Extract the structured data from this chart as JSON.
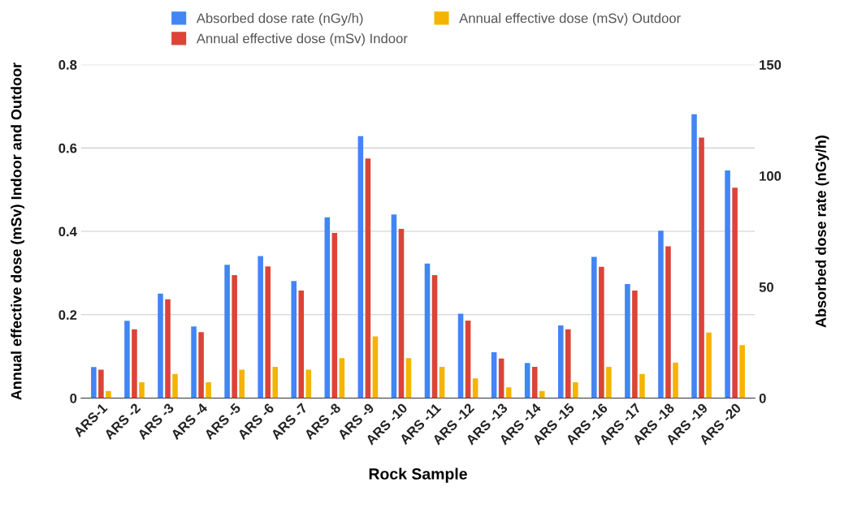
{
  "chart_data": {
    "type": "bar",
    "xlabel": "Rock Sample",
    "ylabel": "Annual effective dose (mSv) Indoor and Outdoor",
    "y2label": "Absorbed dose rate (nGy/h)",
    "categories": [
      "ARS-1",
      "ARS -2",
      "ARS -3",
      "ARS -4",
      "ARS -5",
      "ARS -6",
      "ARS -7",
      "ARS -8",
      "ARS -9",
      "ARS -10",
      "ARS -11",
      "ARS -12",
      "ARS -13",
      "ARS -14",
      "ARS -15",
      "ARS -16",
      "ARS -17",
      "ARS -18",
      "ARS -19",
      "ARS -20"
    ],
    "series": [
      {
        "name": "Absorbed dose rate (nGy/h)",
        "color": "#4285f4",
        "axis": "y2",
        "values": [
          14.0,
          34.8,
          47.0,
          32.2,
          60.0,
          63.9,
          52.7,
          81.3,
          117.8,
          82.6,
          60.5,
          38.0,
          20.6,
          15.8,
          32.7,
          63.5,
          51.3,
          75.3,
          127.7,
          102.4
        ]
      },
      {
        "name": "Annual effective dose (mSv) Indoor",
        "color": "#db4437",
        "values": [
          0.068,
          0.165,
          0.237,
          0.158,
          0.295,
          0.316,
          0.258,
          0.396,
          0.575,
          0.406,
          0.295,
          0.186,
          0.095,
          0.075,
          0.165,
          0.315,
          0.258,
          0.364,
          0.625,
          0.505
        ]
      },
      {
        "name": "Annual effective dose (mSv) Outdoor",
        "color": "#f4b400",
        "values": [
          0.017,
          0.038,
          0.058,
          0.038,
          0.068,
          0.075,
          0.068,
          0.096,
          0.148,
          0.096,
          0.075,
          0.047,
          0.026,
          0.017,
          0.038,
          0.075,
          0.058,
          0.085,
          0.157,
          0.127
        ]
      }
    ],
    "ylim": [
      0,
      0.8
    ],
    "yticks": [
      {
        "value": 0,
        "label": "0"
      },
      0.2,
      0.4,
      0.6,
      0.8
    ],
    "y2lim": [
      0,
      150
    ],
    "y2ticks": [
      0,
      50,
      100,
      150
    ],
    "grid": "y",
    "legend": "top"
  }
}
